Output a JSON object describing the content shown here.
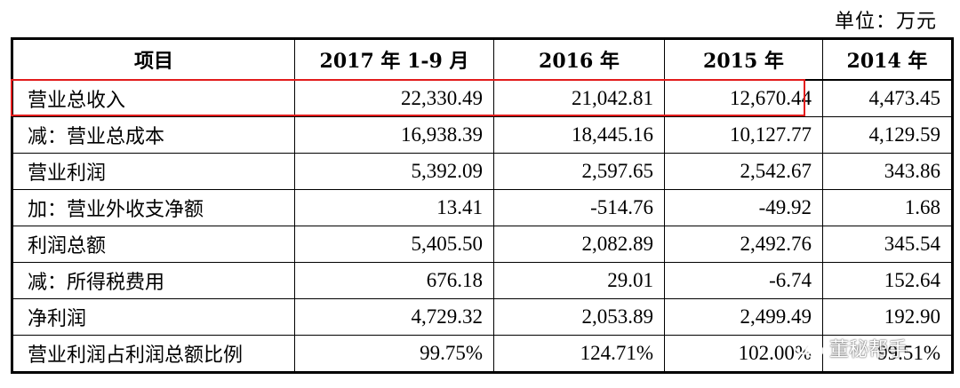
{
  "unit_label": "单位：万元",
  "table": {
    "headers": [
      "项目",
      "2017 年 1-9 月",
      "2016 年",
      "2015 年",
      "2014 年"
    ],
    "rows": [
      {
        "label": "营业总收入",
        "values": [
          "22,330.49",
          "21,042.81",
          "12,670.44",
          "4,473.45"
        ]
      },
      {
        "label": "减：营业总成本",
        "values": [
          "16,938.39",
          "18,445.16",
          "10,127.77",
          "4,129.59"
        ]
      },
      {
        "label": "营业利润",
        "values": [
          "5,392.09",
          "2,597.65",
          "2,542.67",
          "343.86"
        ]
      },
      {
        "label": "加：营业外收支净额",
        "values": [
          "13.41",
          "-514.76",
          "-49.92",
          "1.68"
        ]
      },
      {
        "label": "利润总额",
        "values": [
          "5,405.50",
          "2,082.89",
          "2,492.76",
          "345.54"
        ]
      },
      {
        "label": "减：所得税费用",
        "values": [
          "676.18",
          "29.01",
          "-6.74",
          "152.64"
        ]
      },
      {
        "label": "净利润",
        "values": [
          "4,729.32",
          "2,053.89",
          "2,499.49",
          "192.90"
        ]
      },
      {
        "label": "营业利润占利润总额比例",
        "values": [
          "99.75%",
          "124.71%",
          "102.00%",
          "99.51%"
        ]
      }
    ]
  },
  "highlight": {
    "row_label": "营业总收入",
    "color": "#e21b1b"
  },
  "watermark": {
    "text": "董秘帮手",
    "icon": "wechat-icon"
  }
}
